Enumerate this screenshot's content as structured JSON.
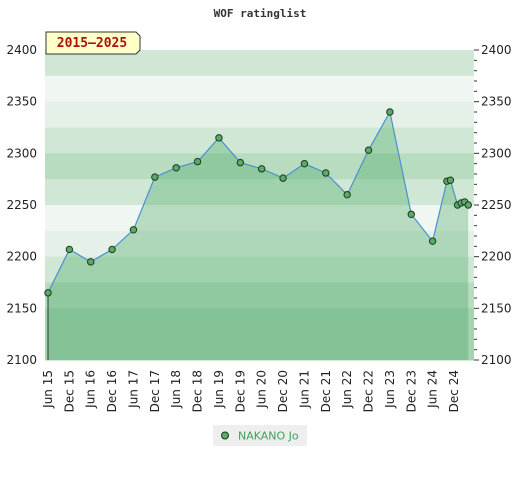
{
  "chart_data": {
    "type": "area",
    "title": "WOF ratinglist",
    "badge": "2015–2025",
    "xlabel": "",
    "ylabel": "",
    "ylim": [
      2100,
      2400
    ],
    "yticks": [
      2100,
      2150,
      2200,
      2250,
      2300,
      2350,
      2400
    ],
    "xticks": [
      "Jun 15",
      "Dec 15",
      "Jun 16",
      "Dec 16",
      "Jun 17",
      "Dec 17",
      "Jun 18",
      "Dec 18",
      "Jun 19",
      "Dec 19",
      "Jun 20",
      "Dec 20",
      "Jun 21",
      "Dec 21",
      "Jun 22",
      "Dec 22",
      "Jun 23",
      "Dec 23",
      "Jun 24",
      "Dec 24"
    ],
    "grid": true,
    "legend_position": "bottom",
    "series": [
      {
        "name": "NAKANO Jo",
        "color": "#3aa35a",
        "points": [
          [
            "Jun 15",
            2165
          ],
          [
            "Dec 15",
            2207
          ],
          [
            "Jun 16",
            2195
          ],
          [
            "Dec 16",
            2207
          ],
          [
            "Jun 17",
            2226
          ],
          [
            "Dec 17",
            2277
          ],
          [
            "Jun 18",
            2286
          ],
          [
            "Dec 18",
            2292
          ],
          [
            "Jun 19",
            2315
          ],
          [
            "Dec 19",
            2291
          ],
          [
            "Jun 20",
            2285
          ],
          [
            "Dec 20",
            2276
          ],
          [
            "Jun 21",
            2290
          ],
          [
            "Dec 21",
            2281
          ],
          [
            "Jun 22",
            2260
          ],
          [
            "Dec 22",
            2303
          ],
          [
            "Jun 23",
            2340
          ],
          [
            "Dec 23",
            2241
          ],
          [
            "Jun 24",
            2215
          ],
          [
            "Oct 24",
            2273
          ],
          [
            "Nov 24",
            2274
          ],
          [
            "Jan 25",
            2250
          ],
          [
            "Feb 25",
            2252
          ],
          [
            "Mar 25",
            2253
          ],
          [
            "Apr 25",
            2250
          ]
        ]
      }
    ]
  }
}
